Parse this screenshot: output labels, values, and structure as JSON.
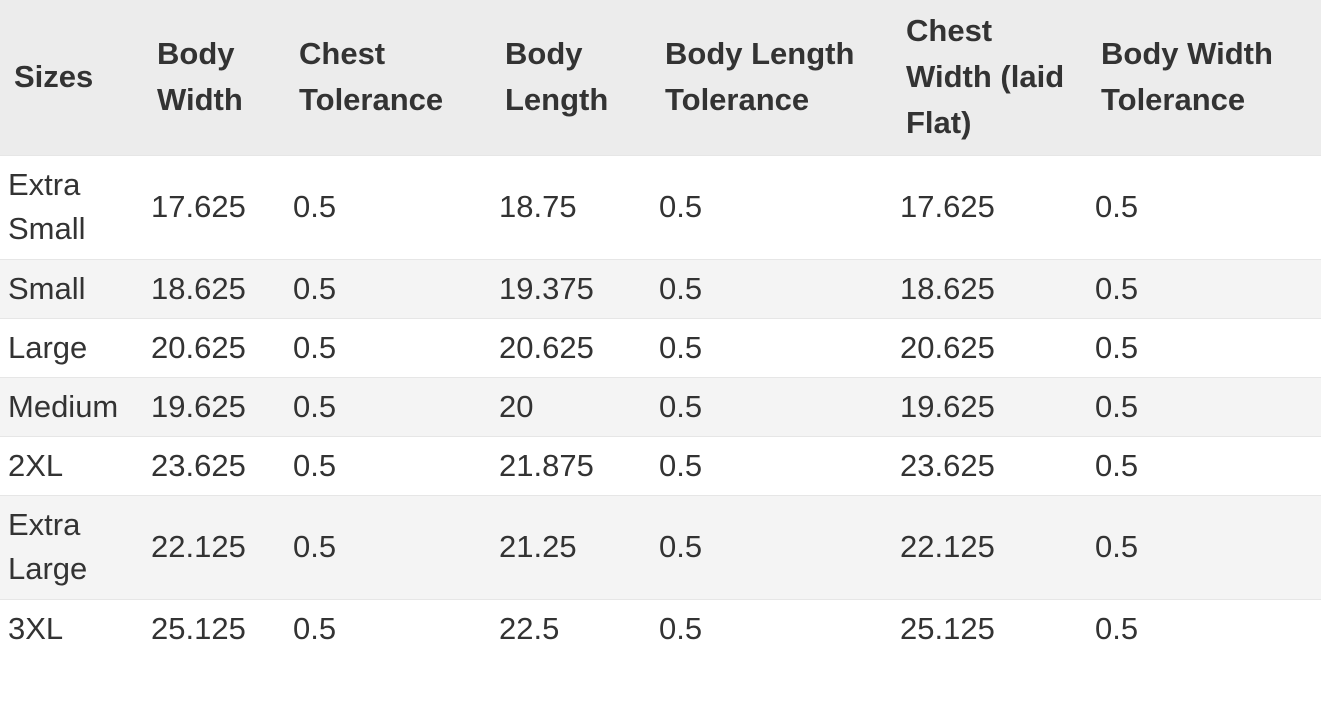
{
  "table": {
    "headers": [
      "Sizes",
      "Body Width",
      "Chest Tolerance",
      "Body Length",
      "Body Length Tolerance",
      "Chest Width (laid Flat)",
      "Body Width Tolerance"
    ],
    "rows": [
      [
        "Extra Small",
        "17.625",
        "0.5",
        "18.75",
        "0.5",
        "17.625",
        "0.5"
      ],
      [
        "Small",
        "18.625",
        "0.5",
        "19.375",
        "0.5",
        "18.625",
        "0.5"
      ],
      [
        "Large",
        "20.625",
        "0.5",
        "20.625",
        "0.5",
        "20.625",
        "0.5"
      ],
      [
        "Medium",
        "19.625",
        "0.5",
        "20",
        "0.5",
        "19.625",
        "0.5"
      ],
      [
        "2XL",
        "23.625",
        "0.5",
        "21.875",
        "0.5",
        "23.625",
        "0.5"
      ],
      [
        "Extra Large",
        "22.125",
        "0.5",
        "21.25",
        "0.5",
        "22.125",
        "0.5"
      ],
      [
        "3XL",
        "25.125",
        "0.5",
        "22.5",
        "0.5",
        "25.125",
        "0.5"
      ]
    ]
  }
}
